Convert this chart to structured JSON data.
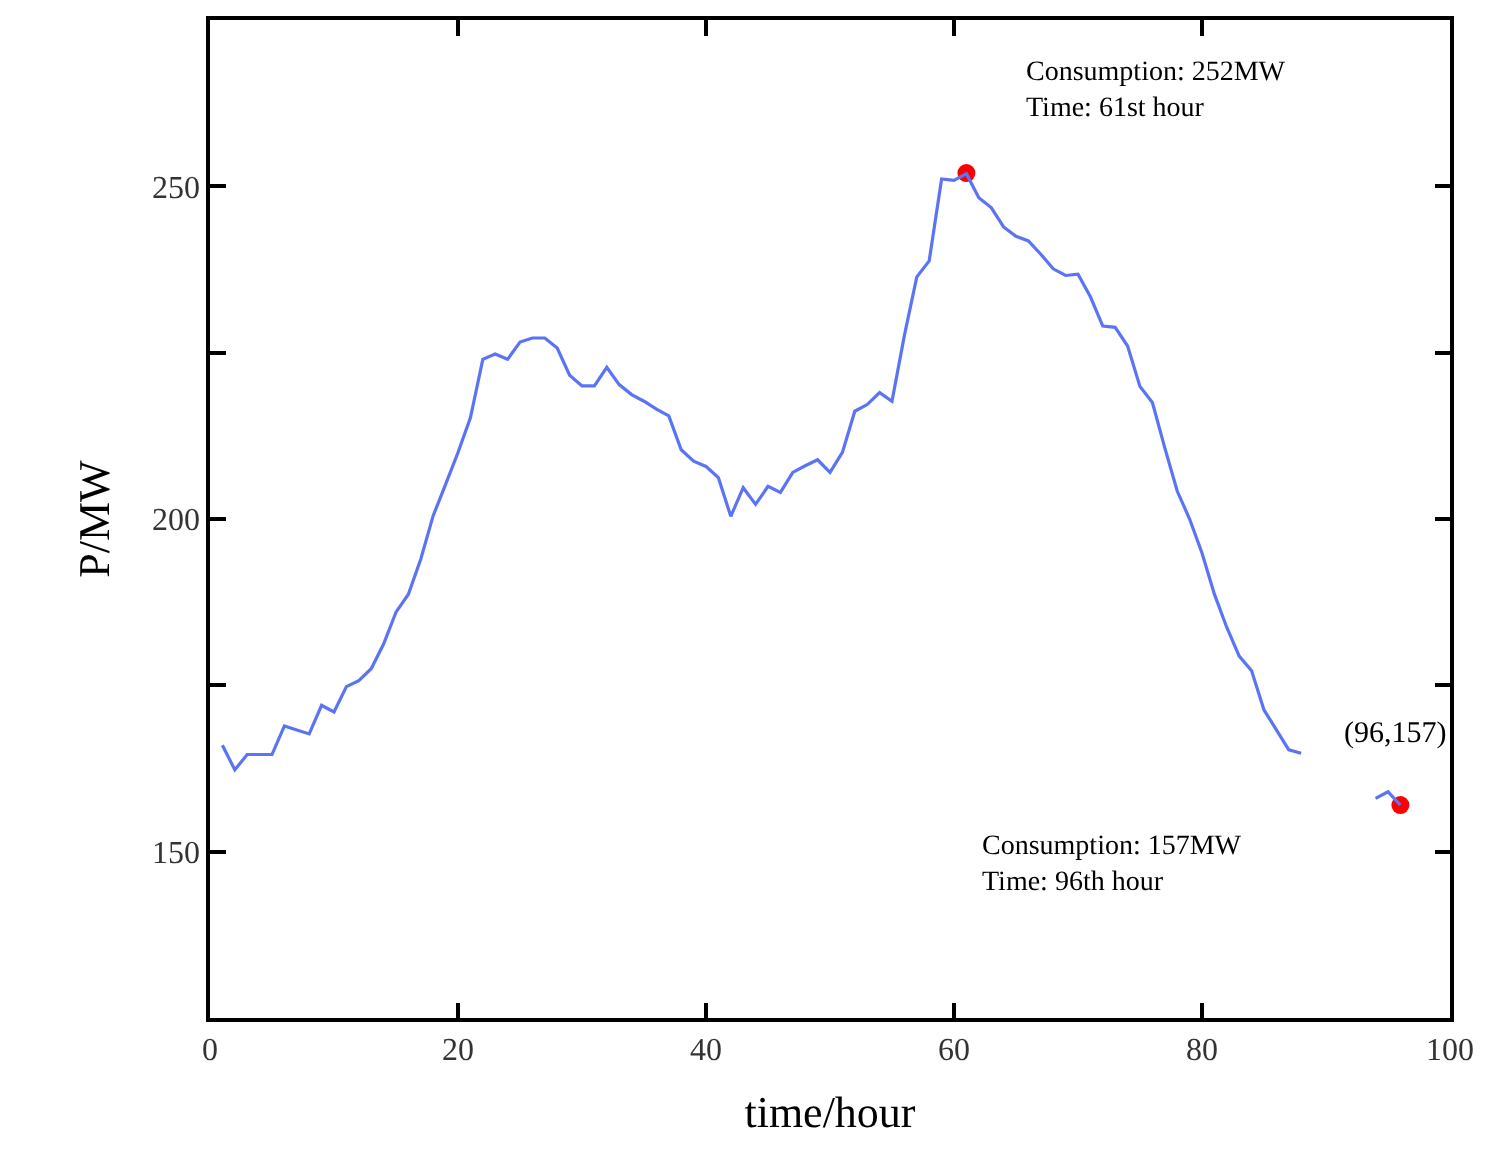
{
  "chart_data": {
    "type": "line",
    "xlabel": "time/hour",
    "ylabel": "P/MW",
    "x": [
      1,
      2,
      3,
      4,
      5,
      6,
      7,
      8,
      9,
      10,
      11,
      12,
      13,
      14,
      15,
      16,
      17,
      18,
      19,
      20,
      21,
      22,
      23,
      24,
      25,
      26,
      27,
      28,
      29,
      30,
      31,
      32,
      33,
      34,
      35,
      36,
      37,
      38,
      39,
      40,
      41,
      42,
      43,
      44,
      45,
      46,
      47,
      48,
      49,
      50,
      51,
      52,
      53,
      54,
      55,
      56,
      57,
      58,
      59,
      60,
      61,
      62,
      63,
      64,
      65,
      66,
      67,
      68,
      69,
      70,
      71,
      72,
      73,
      74,
      75,
      76,
      77,
      78,
      79,
      80,
      81,
      82,
      83,
      84,
      85,
      86,
      87,
      88,
      89,
      90,
      91,
      92,
      93,
      94,
      95,
      96
    ],
    "series": [
      {
        "color": "#5b73f5",
        "values": [
          166,
          162.3,
          164.6,
          164.6,
          164.6,
          168.9,
          168.3,
          167.7,
          172,
          171,
          174.8,
          175.7,
          177.5,
          181.2,
          186,
          188.7,
          194,
          200.5,
          205.2,
          210,
          215.2,
          224,
          224.8,
          224,
          226.6,
          227.2,
          227.2,
          225.7,
          221.6,
          220,
          220,
          222.8,
          220.2,
          218.7,
          217.7,
          216.5,
          215.5,
          210.4,
          208.7,
          207.9,
          206.2,
          200.4,
          204.7,
          202.2,
          204.9,
          204,
          207,
          208,
          208.9,
          207,
          210,
          216.2,
          217.2,
          219,
          217.7,
          227.6,
          236.4,
          238.8,
          251.1,
          250.9,
          251.9,
          248.3,
          246.8,
          243.9,
          242.5,
          241.8,
          239.8,
          237.6,
          236.6,
          236.8,
          233.4,
          229,
          228.8,
          226,
          219.9,
          217.5,
          210.7,
          204.2,
          200,
          194.9,
          188.7,
          183.7,
          179.4,
          177.2,
          171.3,
          168.3,
          165.3,
          164.8,
          null,
          null,
          null,
          null,
          null,
          158,
          159,
          157
        ]
      },
      {
        "type": "scatter",
        "color": "#ff0000",
        "x": [
          61,
          96
        ],
        "values": [
          252,
          157
        ]
      }
    ],
    "annotations": [
      "Consumption: 252MW\nTime: 61st hour",
      "Consumption: 157MW\nTime: 96th hour",
      "(96,157)"
    ],
    "xlim": [
      0,
      100
    ],
    "xticks": [
      0,
      20,
      40,
      60,
      80,
      100
    ],
    "ylim": [
      125,
      275
    ],
    "yticks": [
      {
        "value": 150,
        "label": "150"
      },
      {
        "value": 175,
        "label": null
      },
      {
        "value": 200,
        "label": "200"
      },
      {
        "value": 225,
        "label": null
      },
      {
        "value": 250,
        "label": "250"
      }
    ],
    "line_style": "solid"
  }
}
